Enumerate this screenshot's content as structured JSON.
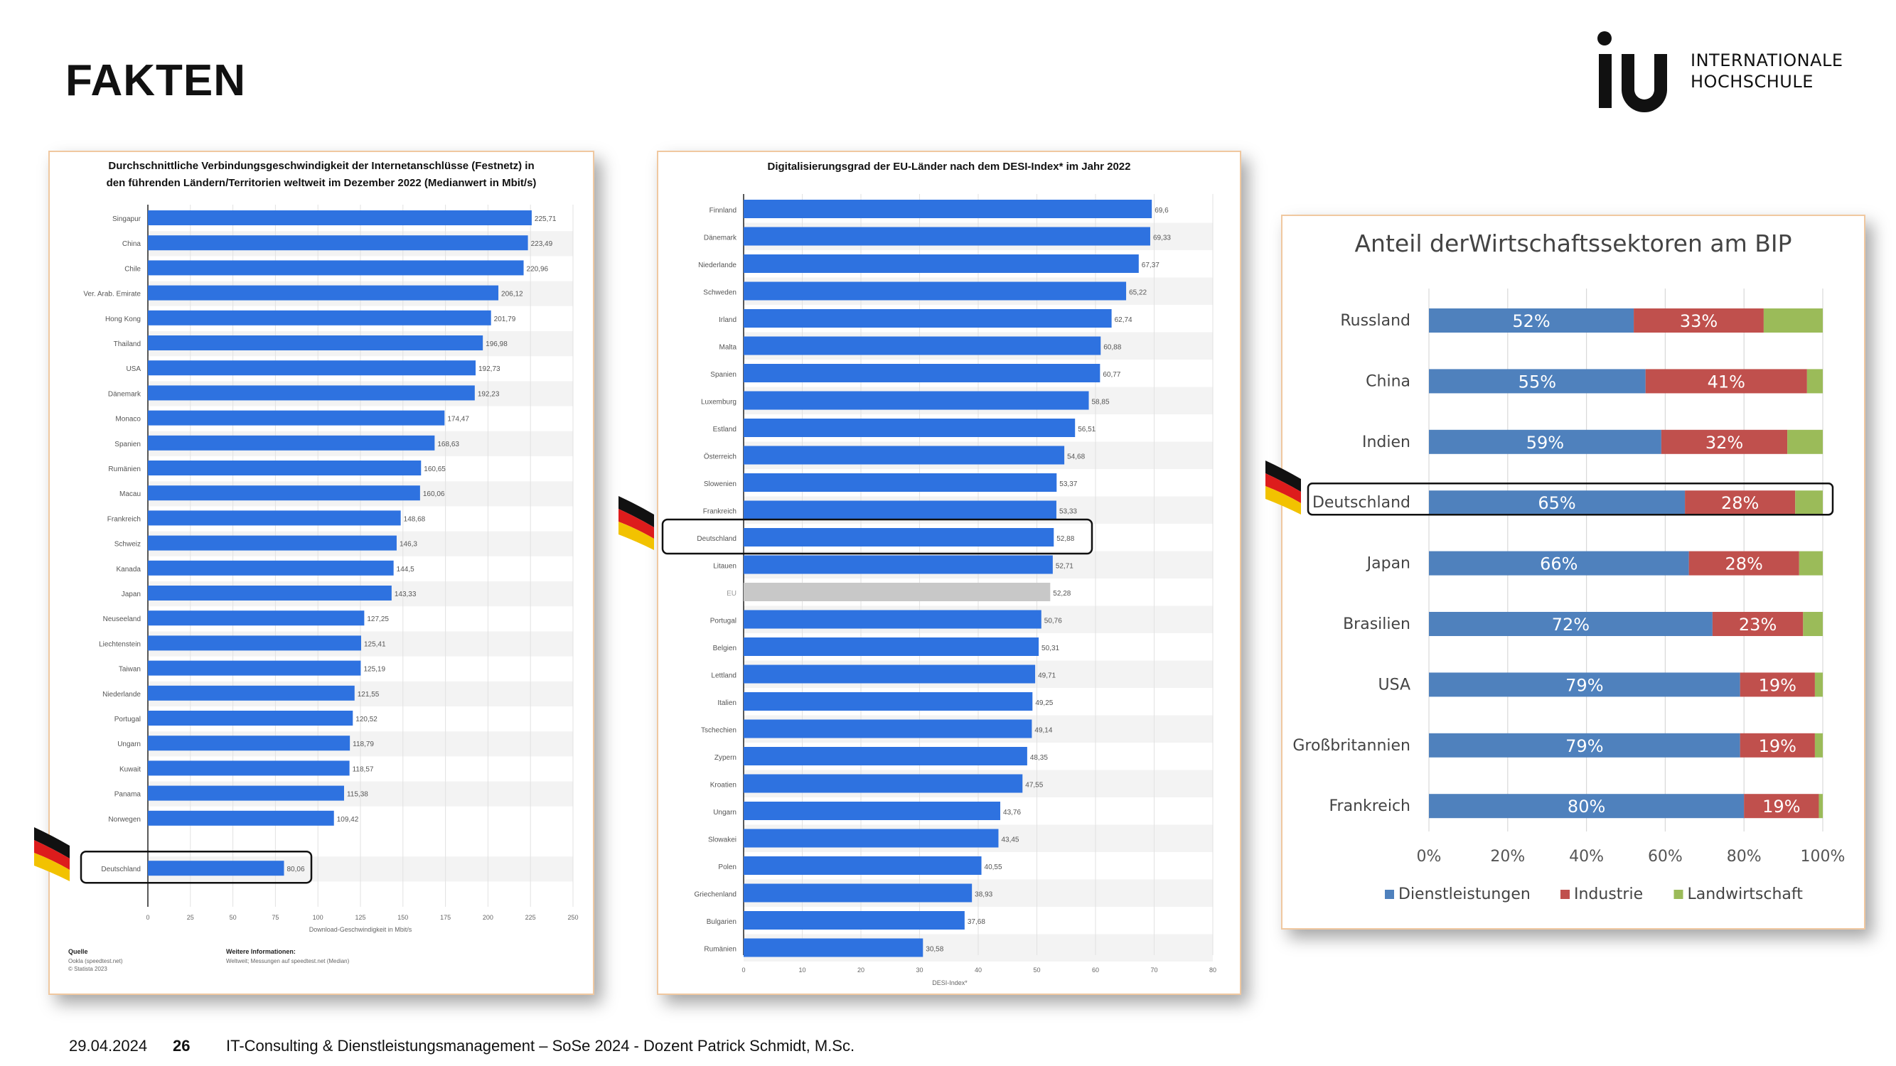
{
  "slide": {
    "title": "FAKTEN",
    "logo_text": "iu",
    "logo_line1": "INTERNATIONALE",
    "logo_line2": "HOCHSCHULE",
    "footer_date": "29.04.2024",
    "footer_page": "26",
    "footer_text": "IT-Consulting & Dienstleistungsmanagement – SoSe 2024 - Dozent Patrick Schmidt, M.Sc."
  },
  "colors": {
    "bar_blue": "#2e72e0",
    "bar_gray": "#c8c8c8",
    "sector_blue": "#4f81bd",
    "sector_red": "#c0504d",
    "sector_green": "#9bbb59"
  },
  "chart_data": [
    {
      "type": "bar",
      "orientation": "horizontal",
      "title_line1": "Durchschnittliche Verbindungsgeschwindigkeit der Internetanschlüsse (Festnetz) in",
      "title_line2": "den führenden Ländern/Territorien weltweit im Dezember 2022 (Medianwert in Mbit/s)",
      "xlabel": "Download-Geschwindigkeit in Mbit/s",
      "xlim": [
        0,
        250
      ],
      "xticks": [
        "0",
        "25",
        "50",
        "75",
        "100",
        "125",
        "150",
        "175",
        "200",
        "225",
        "250"
      ],
      "categories": [
        "Singapur",
        "China",
        "Chile",
        "Ver. Arab. Emirate",
        "Hong Kong",
        "Thailand",
        "USA",
        "Dänemark",
        "Monaco",
        "Spanien",
        "Rumänien",
        "Macau",
        "Frankreich",
        "Schweiz",
        "Kanada",
        "Japan",
        "Neuseeland",
        "Liechtenstein",
        "Taiwan",
        "Niederlande",
        "Portugal",
        "Ungarn",
        "Kuwait",
        "Panama",
        "Norwegen",
        "Deutschland"
      ],
      "values": [
        225.71,
        223.49,
        220.96,
        206.12,
        201.79,
        196.98,
        192.73,
        192.23,
        174.47,
        168.63,
        160.65,
        160.06,
        148.68,
        146.3,
        144.5,
        143.33,
        127.25,
        125.41,
        125.19,
        121.55,
        120.52,
        118.79,
        118.57,
        115.38,
        109.42,
        80.06
      ],
      "value_labels": [
        "225,71",
        "223,49",
        "220,96",
        "206,12",
        "201,79",
        "196,98",
        "192,73",
        "192,23",
        "174,47",
        "168,63",
        "160,65",
        "160,06",
        "148,68",
        "146,3",
        "144,5",
        "143,33",
        "127,25",
        "125,41",
        "125,19",
        "121,55",
        "120,52",
        "118,79",
        "118,57",
        "115,38",
        "109,42",
        "80,06"
      ],
      "highlight": "Deutschland",
      "source_title": "Quelle",
      "source_lines": [
        "Ookla (speedtest.net)",
        "© Statista 2023"
      ],
      "info_title": "Weitere Informationen:",
      "info_lines": [
        "Weltweit; Messungen auf speedtest.net (Median)"
      ]
    },
    {
      "type": "bar",
      "orientation": "horizontal",
      "title": "Digitalisierungsgrad der EU-Länder nach dem DESI-Index* im Jahr 2022",
      "xlabel": "DESI-Index*",
      "xlim": [
        0,
        80
      ],
      "xticks": [
        "0",
        "10",
        "20",
        "30",
        "40",
        "50",
        "60",
        "70",
        "80"
      ],
      "categories": [
        "Finnland",
        "Dänemark",
        "Niederlande",
        "Schweden",
        "Irland",
        "Malta",
        "Spanien",
        "Luxemburg",
        "Estland",
        "Österreich",
        "Slowenien",
        "Frankreich",
        "Deutschland",
        "Litauen",
        "EU",
        "Portugal",
        "Belgien",
        "Lettland",
        "Italien",
        "Tschechien",
        "Zypern",
        "Kroatien",
        "Ungarn",
        "Slowakei",
        "Polen",
        "Griechenland",
        "Bulgarien",
        "Rumänien"
      ],
      "values": [
        69.6,
        69.33,
        67.37,
        65.22,
        62.74,
        60.88,
        60.77,
        58.85,
        56.51,
        54.68,
        53.37,
        53.33,
        52.88,
        52.71,
        52.28,
        50.76,
        50.31,
        49.71,
        49.25,
        49.14,
        48.35,
        47.55,
        43.76,
        43.45,
        40.55,
        38.93,
        37.68,
        30.58
      ],
      "value_labels": [
        "69,6",
        "69,33",
        "67,37",
        "65,22",
        "62,74",
        "60,88",
        "60,77",
        "58,85",
        "56,51",
        "54,68",
        "53,37",
        "53,33",
        "52,88",
        "52,71",
        "52,28",
        "50,76",
        "50,31",
        "49,71",
        "49,25",
        "49,14",
        "48,35",
        "47,55",
        "43,76",
        "43,45",
        "40,55",
        "38,93",
        "37,68",
        "30,58"
      ],
      "highlight": "Deutschland",
      "gray_category": "EU"
    },
    {
      "type": "bar",
      "orientation": "horizontal",
      "stacked": true,
      "percent": true,
      "title": "Anteil derWirtschaftssektoren am BIP",
      "categories": [
        "Russland",
        "China",
        "Indien",
        "Deutschland",
        "Japan",
        "Brasilien",
        "USA",
        "Großbritannien",
        "Frankreich"
      ],
      "series": [
        {
          "name": "Dienstleistungen",
          "values": [
            52,
            55,
            59,
            65,
            66,
            72,
            79,
            79,
            80
          ],
          "labels": [
            "52%",
            "55%",
            "59%",
            "65%",
            "66%",
            "72%",
            "79%",
            "79%",
            "80%"
          ]
        },
        {
          "name": "Industrie",
          "values": [
            33,
            41,
            32,
            28,
            28,
            23,
            19,
            19,
            19
          ],
          "labels": [
            "33%",
            "41%",
            "32%",
            "28%",
            "28%",
            "23%",
            "19%",
            "19%",
            "19%"
          ]
        },
        {
          "name": "Landwirtschaft",
          "values": [
            15,
            4,
            9,
            7,
            6,
            5,
            2,
            2,
            1
          ]
        }
      ],
      "xlim": [
        0,
        100
      ],
      "xticks": [
        "0%",
        "20%",
        "40%",
        "60%",
        "80%",
        "100%"
      ],
      "legend_position": "bottom",
      "highlight": "Deutschland"
    }
  ]
}
